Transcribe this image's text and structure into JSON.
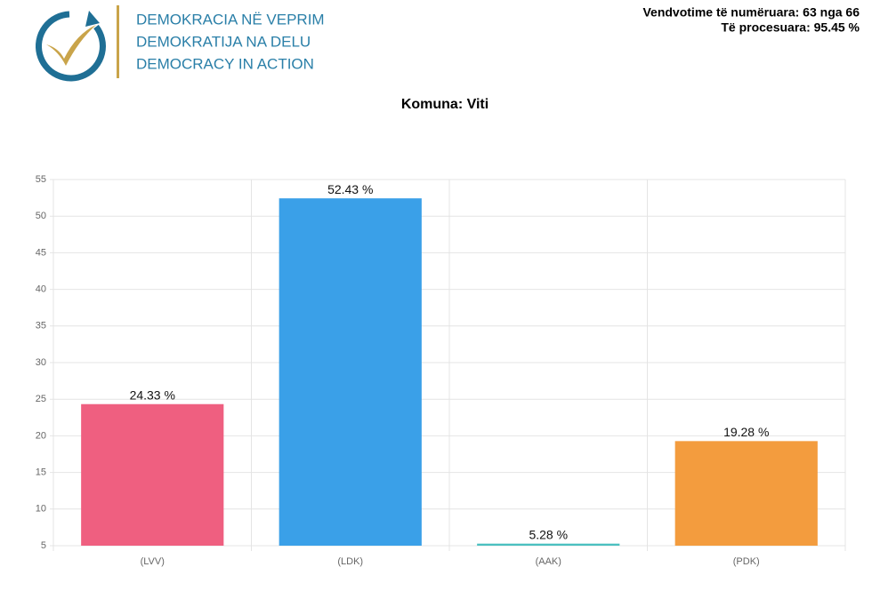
{
  "header": {
    "logo_lines": [
      "DEMOKRACIA NË VEPRIM",
      "DEMOKRATIJA NA DELU",
      "DEMOCRACY IN ACTION"
    ],
    "stats": [
      "Vendvotime të numëruara: 63 nga 66",
      "Të procesuara: 95.45 %"
    ]
  },
  "chart_data": {
    "type": "bar",
    "title": "Komuna: Viti",
    "categories": [
      "(LVV)",
      "(LDK)",
      "(AAK)",
      "(PDK)"
    ],
    "values": [
      24.33,
      52.43,
      5.28,
      19.28
    ],
    "value_labels": [
      "24.33 %",
      "52.43 %",
      "5.28 %",
      "19.28 %"
    ],
    "colors": [
      "#ef5f80",
      "#3aa0e8",
      "#4bc0c0",
      "#f39c3e"
    ],
    "ylim": [
      5,
      55
    ],
    "yticks": [
      5,
      10,
      15,
      20,
      25,
      30,
      35,
      40,
      45,
      50,
      55
    ],
    "grid": true
  }
}
